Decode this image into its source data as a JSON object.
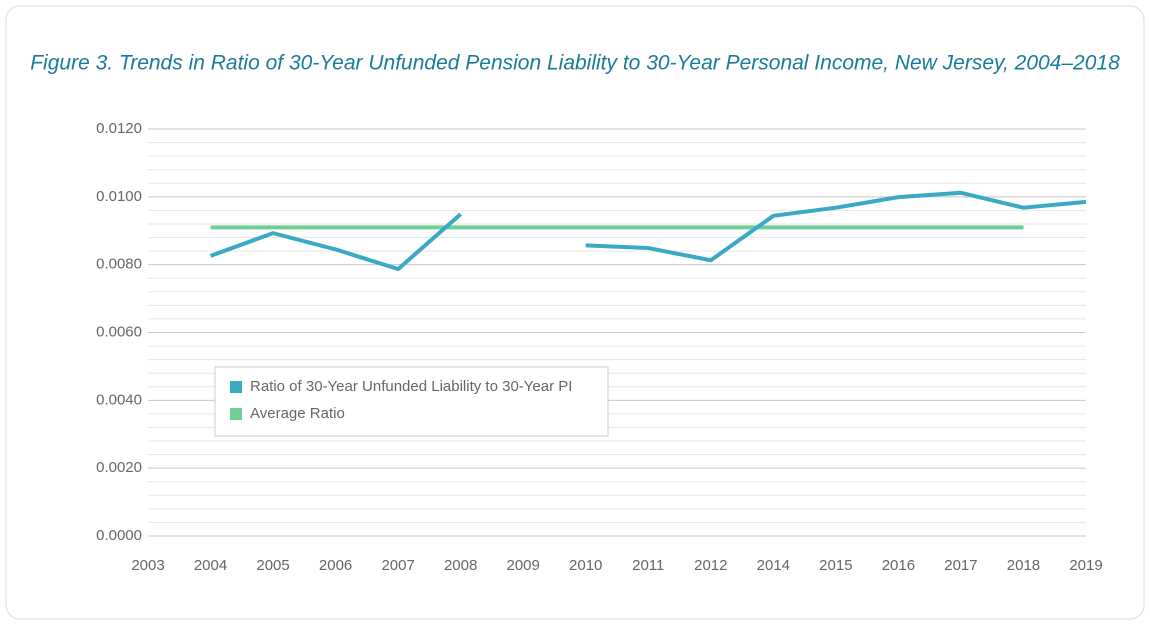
{
  "chart_data": {
    "type": "line",
    "title": "Figure 3. Trends in Ratio of 30-Year Unfunded Pension Liability to 30-Year Personal Income, New Jersey, 2004–2018",
    "categories": [
      "2003",
      "2004",
      "2005",
      "2006",
      "2007",
      "2008",
      "2009",
      "2010",
      "2011",
      "2012",
      "2014",
      "2015",
      "2016",
      "2017",
      "2018",
      "2019"
    ],
    "series": [
      {
        "name": "Ratio of 30-Year Unfunded Liability to 30-Year PI",
        "color": "#3aa9c4",
        "values": [
          null,
          0.00826,
          0.00893,
          0.00845,
          0.00787,
          0.00949,
          null,
          0.00857,
          0.00849,
          0.00813,
          0.00944,
          0.00968,
          0.00999,
          0.01012,
          0.00968,
          0.00985
        ]
      },
      {
        "name": "Average Ratio",
        "color": "#6fcf97",
        "values": [
          null,
          0.0091,
          0.0091,
          0.0091,
          0.0091,
          0.0091,
          0.0091,
          0.0091,
          0.0091,
          0.0091,
          0.0091,
          0.0091,
          0.0091,
          0.0091,
          0.0091,
          null
        ]
      }
    ],
    "ylim": [
      0,
      0.012
    ],
    "yticks": [
      {
        "value": 0,
        "label": "0.0000"
      },
      {
        "value": 0.002,
        "label": "0.0020"
      },
      {
        "value": 0.004,
        "label": "0.0040"
      },
      {
        "value": 0.006,
        "label": "0.0060"
      },
      {
        "value": 0.008,
        "label": "0.0080"
      },
      {
        "value": 0.01,
        "label": "0.0100"
      },
      {
        "value": 0.012,
        "label": "0.0120"
      }
    ],
    "yminorticks": [
      0.0004,
      0.0008,
      0.0012,
      0.0016,
      0.0024,
      0.0028,
      0.0032,
      0.0036,
      0.0044,
      0.0048,
      0.0052,
      0.0056,
      0.0064,
      0.0068,
      0.0072,
      0.0076,
      0.0084,
      0.0088,
      0.0092,
      0.0096,
      0.0104,
      0.0108,
      0.0112,
      0.0116
    ],
    "grid": true,
    "legend": "lower left"
  }
}
